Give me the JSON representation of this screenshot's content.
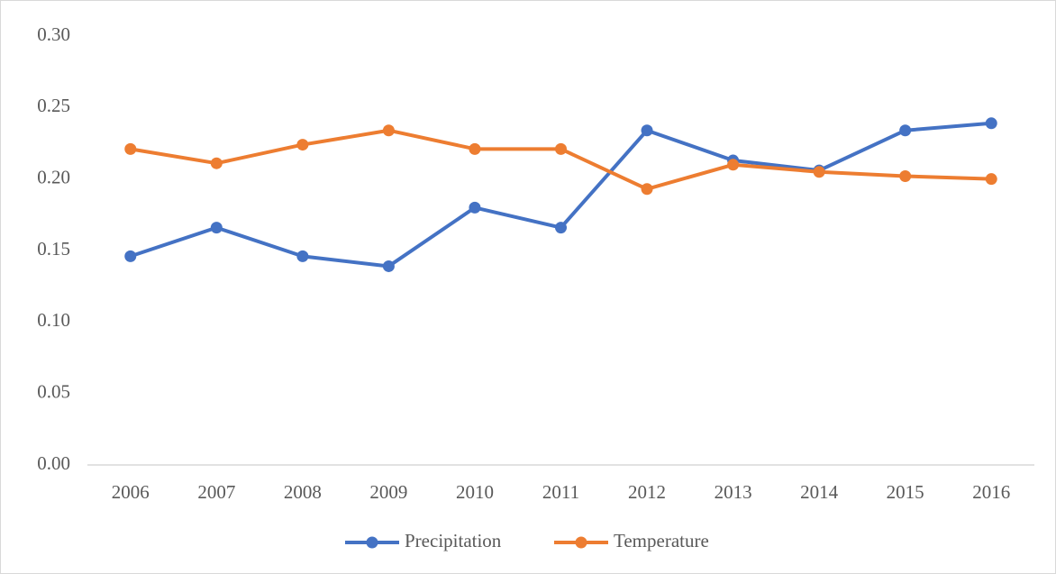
{
  "chart_data": {
    "type": "line",
    "categories": [
      "2006",
      "2007",
      "2008",
      "2009",
      "2010",
      "2011",
      "2012",
      "2013",
      "2014",
      "2015",
      "2016"
    ],
    "series": [
      {
        "name": "Precipitation",
        "color": "#4472c4",
        "values": [
          0.146,
          0.166,
          0.146,
          0.139,
          0.18,
          0.166,
          0.234,
          0.213,
          0.206,
          0.234,
          0.239
        ]
      },
      {
        "name": "Temperature",
        "color": "#ed7d31",
        "values": [
          0.221,
          0.211,
          0.224,
          0.234,
          0.221,
          0.221,
          0.193,
          0.21,
          0.205,
          0.202,
          0.2
        ]
      }
    ],
    "ylim": [
      0,
      0.3
    ],
    "yticks": [
      {
        "value": 0,
        "label": "0.00"
      },
      0.05,
      {
        "value": 0.1,
        "label": "0.10"
      },
      0.15,
      {
        "value": 0.2,
        "label": "0.20"
      },
      0.25,
      {
        "value": 0.3,
        "label": "0.30"
      }
    ],
    "grid": false,
    "legend": "bottom"
  }
}
